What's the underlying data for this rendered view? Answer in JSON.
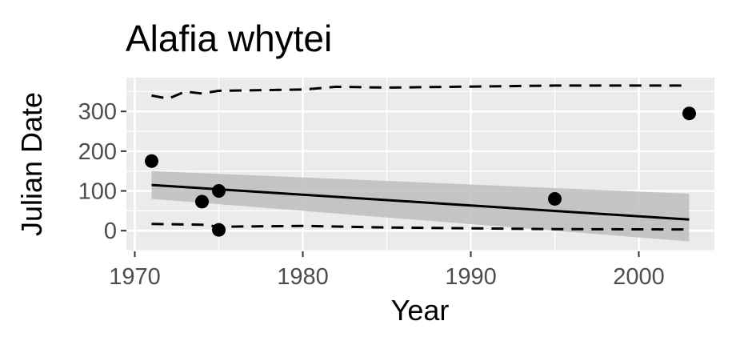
{
  "chart_data": {
    "type": "scatter",
    "title": "Alafia whytei",
    "xlabel": "Year",
    "ylabel": "Julian Date",
    "xlim": [
      1969.5,
      2004.5
    ],
    "ylim": [
      -52,
      385
    ],
    "x_ticks": [
      1970,
      1980,
      1990,
      2000
    ],
    "x_tick_labels": [
      "1970",
      "1980",
      "1990",
      "2000"
    ],
    "y_ticks": [
      0,
      100,
      200,
      300
    ],
    "y_tick_labels": [
      "0",
      "100",
      "200",
      "300"
    ],
    "grid": true,
    "points": [
      {
        "x": 1971,
        "y": 175
      },
      {
        "x": 1974,
        "y": 73
      },
      {
        "x": 1975,
        "y": 100
      },
      {
        "x": 1975,
        "y": 2
      },
      {
        "x": 1995,
        "y": 80
      },
      {
        "x": 2003,
        "y": 295
      }
    ],
    "trend_line": {
      "x": [
        1971,
        2003
      ],
      "y": [
        115,
        28
      ]
    },
    "confidence_band": {
      "x": [
        1971,
        2003
      ],
      "upper": [
        150,
        93
      ],
      "lower": [
        80,
        -27
      ]
    },
    "upper_dashed": {
      "x": [
        1971,
        1972,
        1973,
        1974,
        1975,
        1980,
        1982,
        1985,
        1995,
        2003
      ],
      "y": [
        340,
        332,
        350,
        345,
        352,
        355,
        362,
        360,
        365,
        365
      ]
    },
    "lower_dashed": {
      "x": [
        1971,
        1974,
        1975,
        1980,
        1985,
        1992,
        1995,
        2003
      ],
      "y": [
        17,
        15,
        10,
        12,
        8,
        5,
        4,
        3
      ]
    },
    "colors": {
      "panel": "#ebebeb",
      "grid": "#ffffff",
      "points": "#000000",
      "band": "#bdbdbd",
      "tick_text": "#4d4d4d"
    }
  }
}
